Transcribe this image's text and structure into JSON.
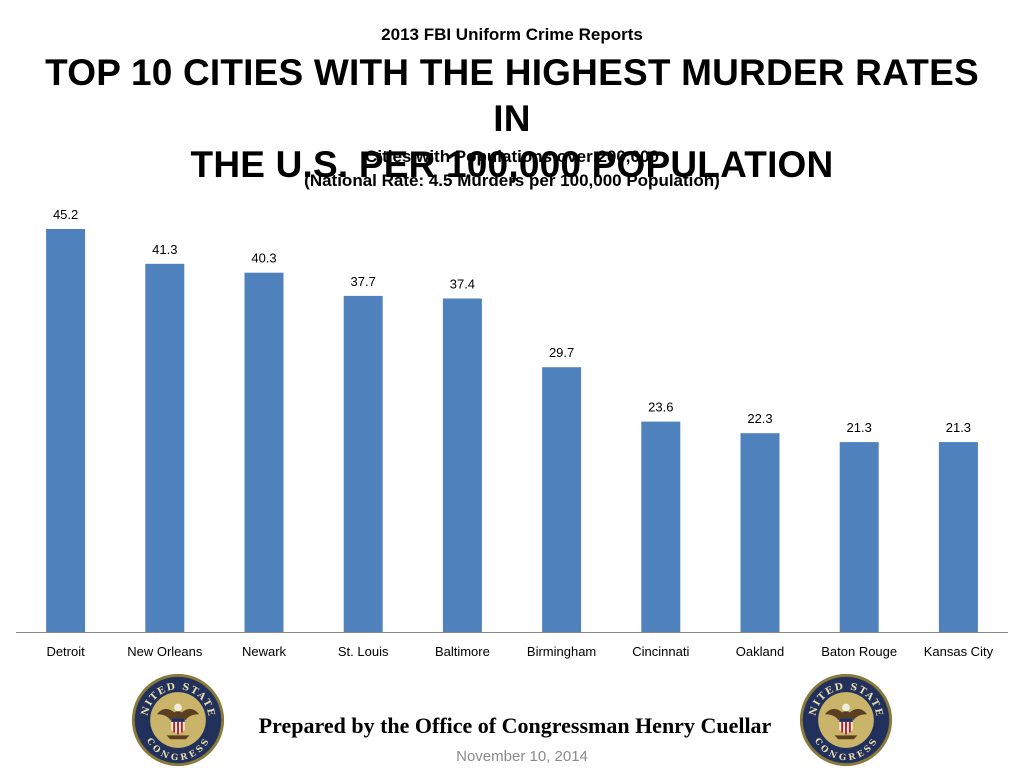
{
  "header": {
    "supertitle": "2013 FBI Uniform Crime Reports",
    "title_line1": "TOP 10 CITIES WITH THE HIGHEST MURDER RATES IN",
    "title_line2": "THE U.S. PER 100,000 POPULATION",
    "subtitle_line1": "Cities with Populations over 200,000",
    "subtitle_line2": "(National Rate: 4.5 Murders per 100,000 Population)"
  },
  "chart_data": {
    "type": "bar",
    "title": "TOP 10 CITIES WITH THE HIGHEST MURDER RATES IN THE U.S. PER 100,000 POPULATION",
    "xlabel": "",
    "ylabel": "",
    "categories": [
      "Detroit",
      "New Orleans",
      "Newark",
      "St. Louis",
      "Baltimore",
      "Birmingham",
      "Cincinnati",
      "Oakland",
      "Baton Rouge",
      "Kansas City"
    ],
    "values": [
      45.2,
      41.3,
      40.3,
      37.7,
      37.4,
      29.7,
      23.6,
      22.3,
      21.3,
      21.3
    ],
    "ylim": [
      0,
      45.2
    ],
    "grid": false,
    "legend": "none",
    "bar_color": "#4f81bd"
  },
  "footer": {
    "prepared_by": "Prepared by the Office of Congressman Henry Cuellar",
    "date": "November 10, 2014",
    "seal_text_top": "UNITED STATES",
    "seal_text_bottom": "CONGRESS"
  },
  "colors": {
    "seal_ring": "#22305c",
    "seal_outer": "#8a7a3a",
    "seal_inner": "#c9b46a",
    "date_text": "#8a8a8a"
  }
}
